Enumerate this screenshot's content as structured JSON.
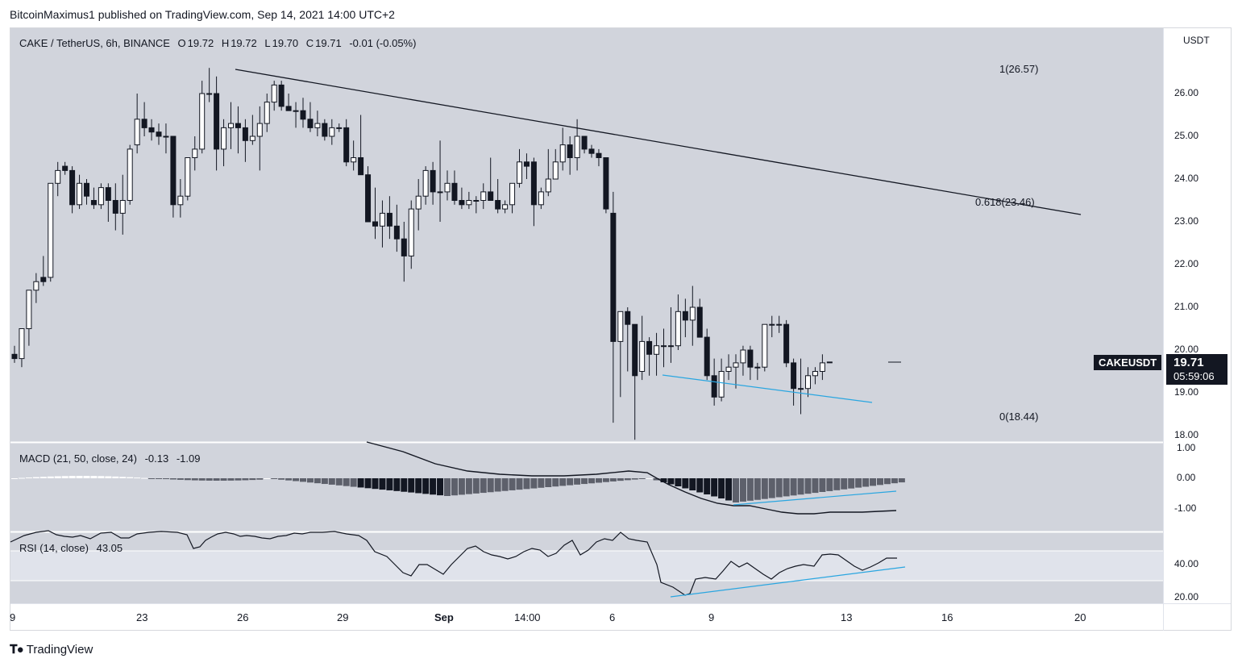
{
  "publish_line": "BitcoinMaximus1 published on TradingView.com, Sep 14, 2021 14:00 UTC+2",
  "symbol_legend": "CAKE / TetherUS, 6h, BINANCE",
  "ohlc": {
    "o_label": "O",
    "o": "19.72",
    "h_label": "H",
    "h": "19.72",
    "l_label": "L",
    "l": "19.70",
    "c_label": "C",
    "c": "19.71",
    "change": "-0.01 (-0.05%)"
  },
  "price_axis": {
    "currency": "USDT",
    "ticks": [
      "26.00",
      "25.00",
      "24.00",
      "23.00",
      "22.00",
      "21.00",
      "20.00",
      "19.00",
      "18.00"
    ]
  },
  "fib_levels": [
    {
      "label": "1(26.57)"
    },
    {
      "label": "0.618(23.46)"
    },
    {
      "label": "0(18.44)"
    }
  ],
  "ticker_tag": "CAKEUSDT",
  "last_price": "19.71",
  "countdown": "05:59:06",
  "macd": {
    "legend": "MACD (21, 50, close, 24)",
    "macd_value": "-0.13",
    "signal_value": "-1.09",
    "ticks": [
      "1.00",
      "0.00",
      "-1.00"
    ]
  },
  "rsi": {
    "legend": "RSI (14, close)",
    "value": "43.05",
    "ticks": [
      "40.00",
      "20.00"
    ]
  },
  "time_axis": {
    "labels": [
      "9",
      "23",
      "26",
      "29",
      "Sep",
      "14:00",
      "6",
      "9",
      "13",
      "16",
      "20"
    ]
  },
  "branding": "TradingView",
  "colors": {
    "up": "#ffffff",
    "down": "#131722",
    "trendline": "#131722",
    "support": "#2aa6e0",
    "pane_bg": "#d1d4dc",
    "rsi_band": "#e0e3eb"
  }
}
